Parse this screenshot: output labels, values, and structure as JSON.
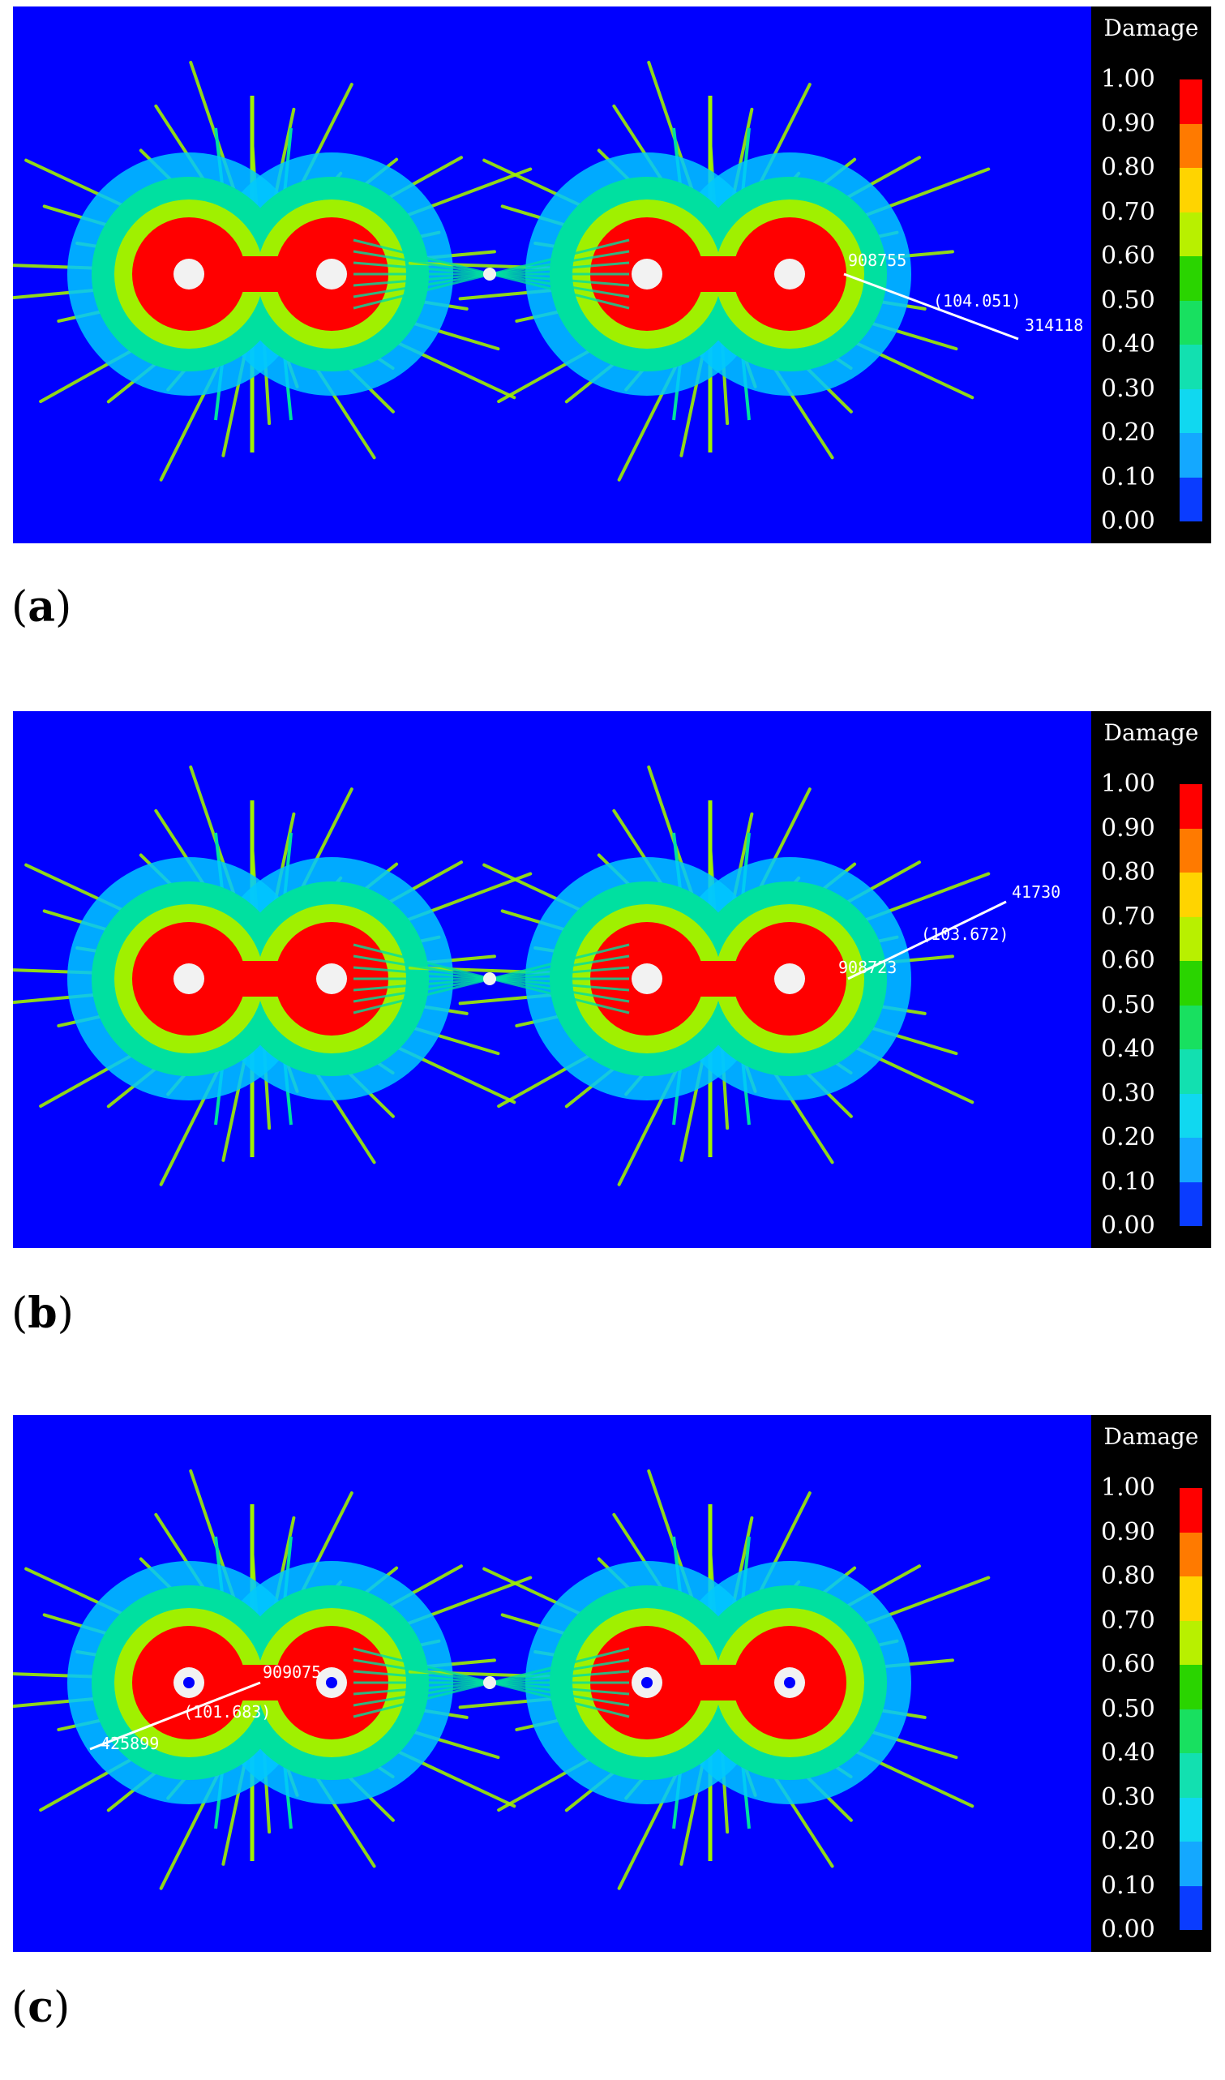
{
  "legend": {
    "title": "Damage",
    "ticks": [
      "1.00",
      "0.90",
      "0.80",
      "0.70",
      "0.60",
      "0.50",
      "0.40",
      "0.30",
      "0.20",
      "0.10",
      "0.00"
    ],
    "colors": [
      "#ff0000",
      "#ff7a00",
      "#ffd400",
      "#b8f000",
      "#2ad400",
      "#18e060",
      "#12e0b0",
      "#10d8f0",
      "#14a8ff",
      "#0a3cff"
    ]
  },
  "colors": {
    "background": "#0000ff",
    "outer": "#00c8ff",
    "mid": "#00e0a0",
    "lime": "#a0f000",
    "core": "#ff0000",
    "hole": "#f2f2f2",
    "label": "#ffffff"
  },
  "panels": [
    {
      "label": "a",
      "annotations": [
        "908755",
        "(104.051)",
        "314118"
      ]
    },
    {
      "label": "b",
      "annotations": [
        "41730",
        "(103.672)",
        "908723"
      ]
    },
    {
      "label": "c",
      "annotations": [
        "909075",
        "(101.683)",
        "425899"
      ]
    }
  ]
}
